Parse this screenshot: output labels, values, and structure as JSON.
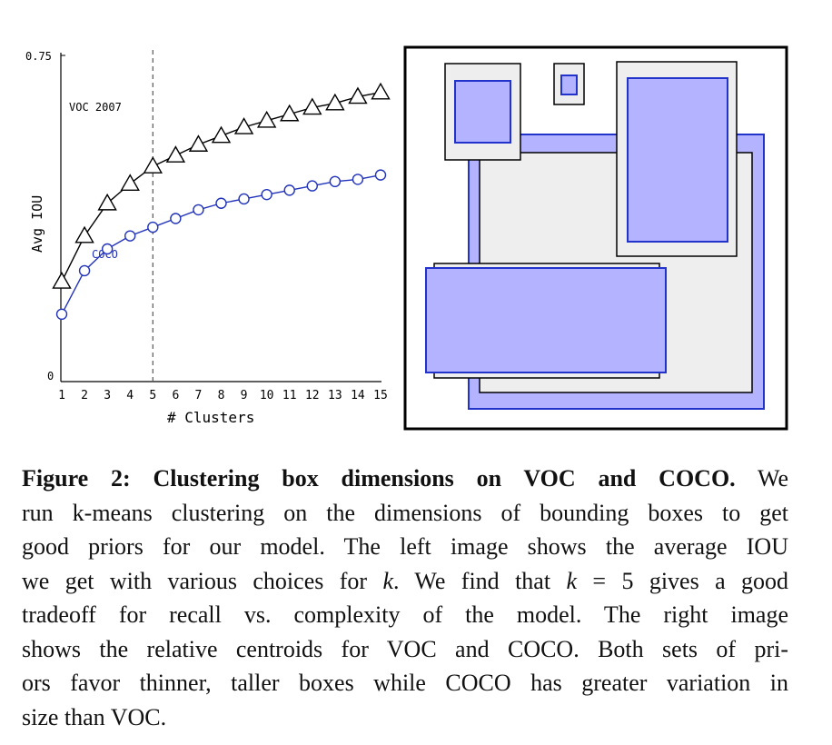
{
  "figure": {
    "left_chart": {
      "chart_data": {
        "type": "line",
        "x": [
          1,
          2,
          3,
          4,
          5,
          6,
          7,
          8,
          9,
          10,
          11,
          12,
          13,
          14,
          15
        ],
        "series": [
          {
            "name": "VOC 2007",
            "marker": "triangle",
            "color": "#000000",
            "values": [
              0.23,
              0.335,
              0.41,
              0.455,
              0.495,
              0.52,
              0.545,
              0.565,
              0.585,
              0.6,
              0.615,
              0.63,
              0.64,
              0.655,
              0.665
            ]
          },
          {
            "name": "COCO",
            "marker": "circle",
            "color": "#2233bb",
            "values": [
              0.155,
              0.255,
              0.305,
              0.335,
              0.355,
              0.375,
              0.395,
              0.41,
              0.42,
              0.43,
              0.44,
              0.45,
              0.46,
              0.465,
              0.475
            ]
          }
        ],
        "xlabel": "# Clusters",
        "ylabel": "Avg IOU",
        "xticks": [
          "1",
          "2",
          "3",
          "4",
          "5",
          "6",
          "7",
          "8",
          "9",
          "10",
          "11",
          "12",
          "13",
          "14",
          "15"
        ],
        "yticks": [
          "0",
          "0.75"
        ],
        "ylim": [
          0,
          0.75
        ],
        "xlim": [
          1,
          15
        ],
        "annotations": {
          "vline_x": 5
        },
        "series_labels": {
          "voc": "VOC 2007",
          "coco": "COCO"
        }
      }
    },
    "right_panel": {
      "description_colors": {
        "voc_fill": "#eeeeee",
        "coco_fill": "#b3b3ff",
        "coco_stroke": "#2233cc",
        "voc_stroke": "#000000"
      }
    }
  },
  "caption": {
    "label": "Figure 2:",
    "title": "Clustering box dimensions on VOC and COCO.",
    "line1_tail": "We",
    "line2": "run k-means clustering on the dimensions of bounding boxes to get",
    "line3": "good priors for our model. The left image shows the average IOU",
    "line4_a": "we get with various choices for",
    "k": "k",
    "line4_b": ". We find that",
    "line4_c": "= 5 gives a good",
    "line5": "tradeoff for recall vs.  complexity of the model.  The right image",
    "line6": "shows the relative centroids for VOC and COCO. Both sets of pri-",
    "line7": "ors favor thinner, taller boxes while COCO has greater variation in",
    "line8": "size than VOC."
  }
}
